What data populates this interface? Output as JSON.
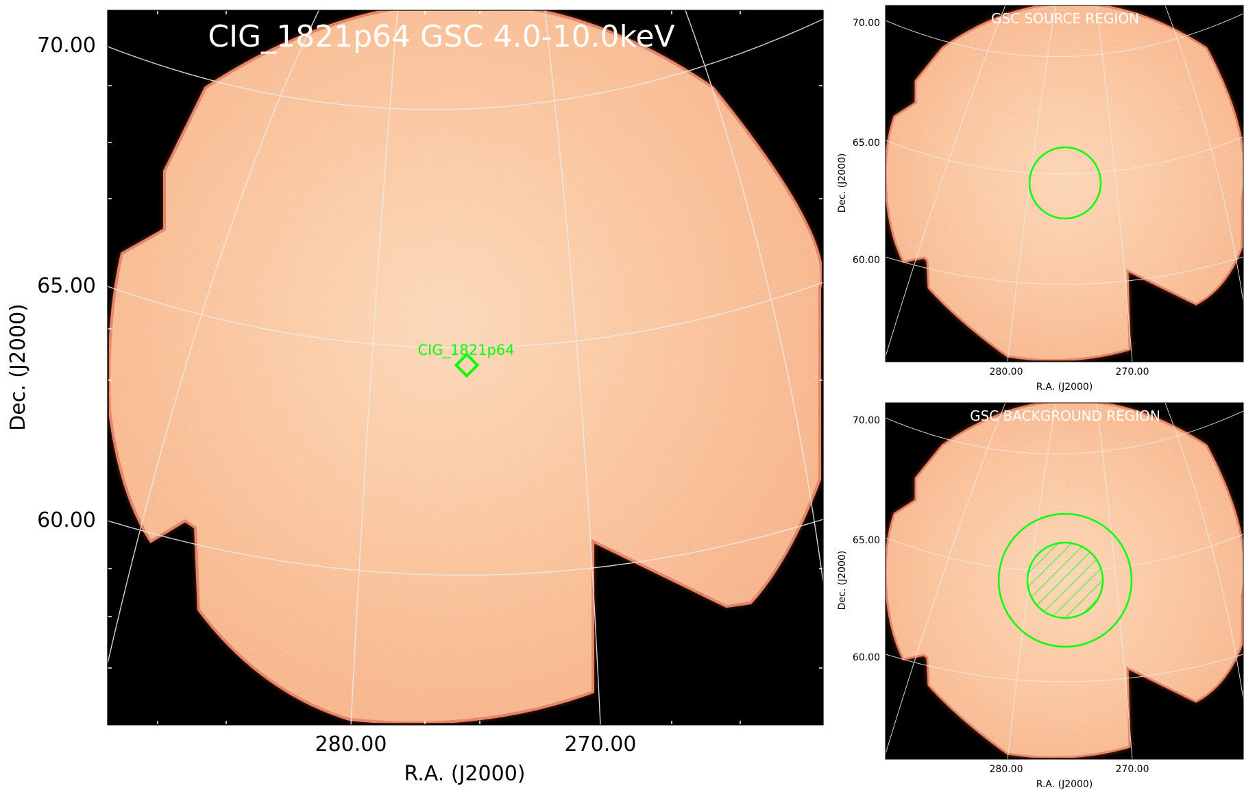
{
  "main_panel": {
    "title": "CIG_1821p64 GSC 4.0-10.0keV",
    "xlabel": "R.A. (J2000)",
    "ylabel": "Dec. (J2000)",
    "x_ticks": [
      "280.00",
      "270.00"
    ],
    "y_ticks": [
      "70.00",
      "65.00",
      "60.00"
    ],
    "source_label": "CIG_1821p64"
  },
  "source_panel": {
    "title": "GSC SOURCE REGION",
    "xlabel": "R.A. (J2000)",
    "ylabel": "Dec. (J2000)",
    "x_ticks": [
      "280.00",
      "270.00"
    ],
    "y_ticks": [
      "70.00",
      "65.00",
      "60.00"
    ]
  },
  "background_panel": {
    "title": "GSC BACKGROUND REGION",
    "xlabel": "R.A. (J2000)",
    "ylabel": "Dec. (J2000)",
    "x_ticks": [
      "280.00",
      "270.00"
    ],
    "y_ticks": [
      "70.00",
      "65.00",
      "60.00"
    ]
  },
  "colors": {
    "sky_background": "#000000",
    "exposure_fill": "#f8b07a",
    "exposure_center": "#fbd0a8",
    "exposure_edge": "#d84a10",
    "grid": "#e8e8e8",
    "region": "#00ff00",
    "text_light": "#ffffff"
  }
}
